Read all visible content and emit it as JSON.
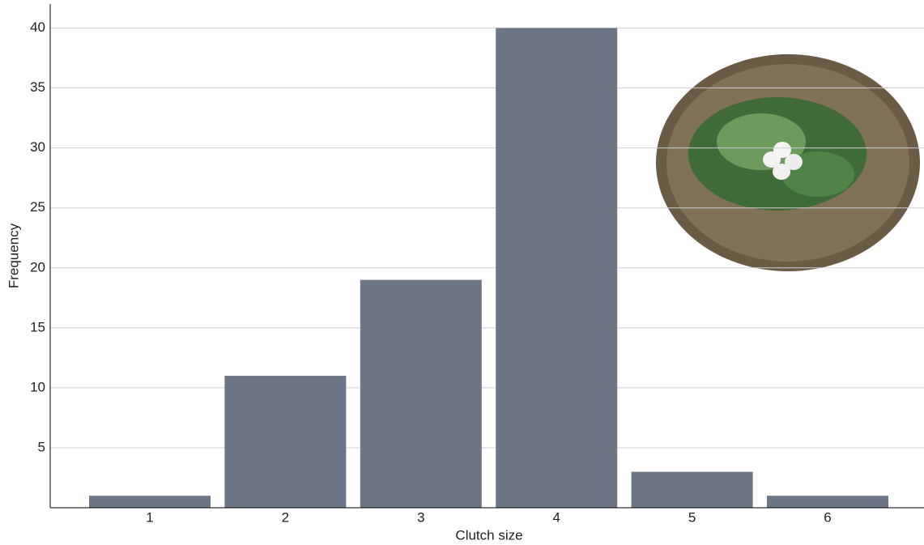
{
  "chart_data": {
    "type": "bar",
    "x_label": "Clutch size",
    "y_label": "Frequency",
    "categories": [
      "1",
      "2",
      "3",
      "4",
      "5",
      "6"
    ],
    "values": [
      1,
      11,
      19,
      40,
      3,
      1
    ],
    "color": "#6c7686",
    "ylim": [
      0,
      42
    ],
    "yticks": [
      5,
      10,
      15,
      20,
      25,
      30,
      35,
      40
    ],
    "grid": true
  }
}
